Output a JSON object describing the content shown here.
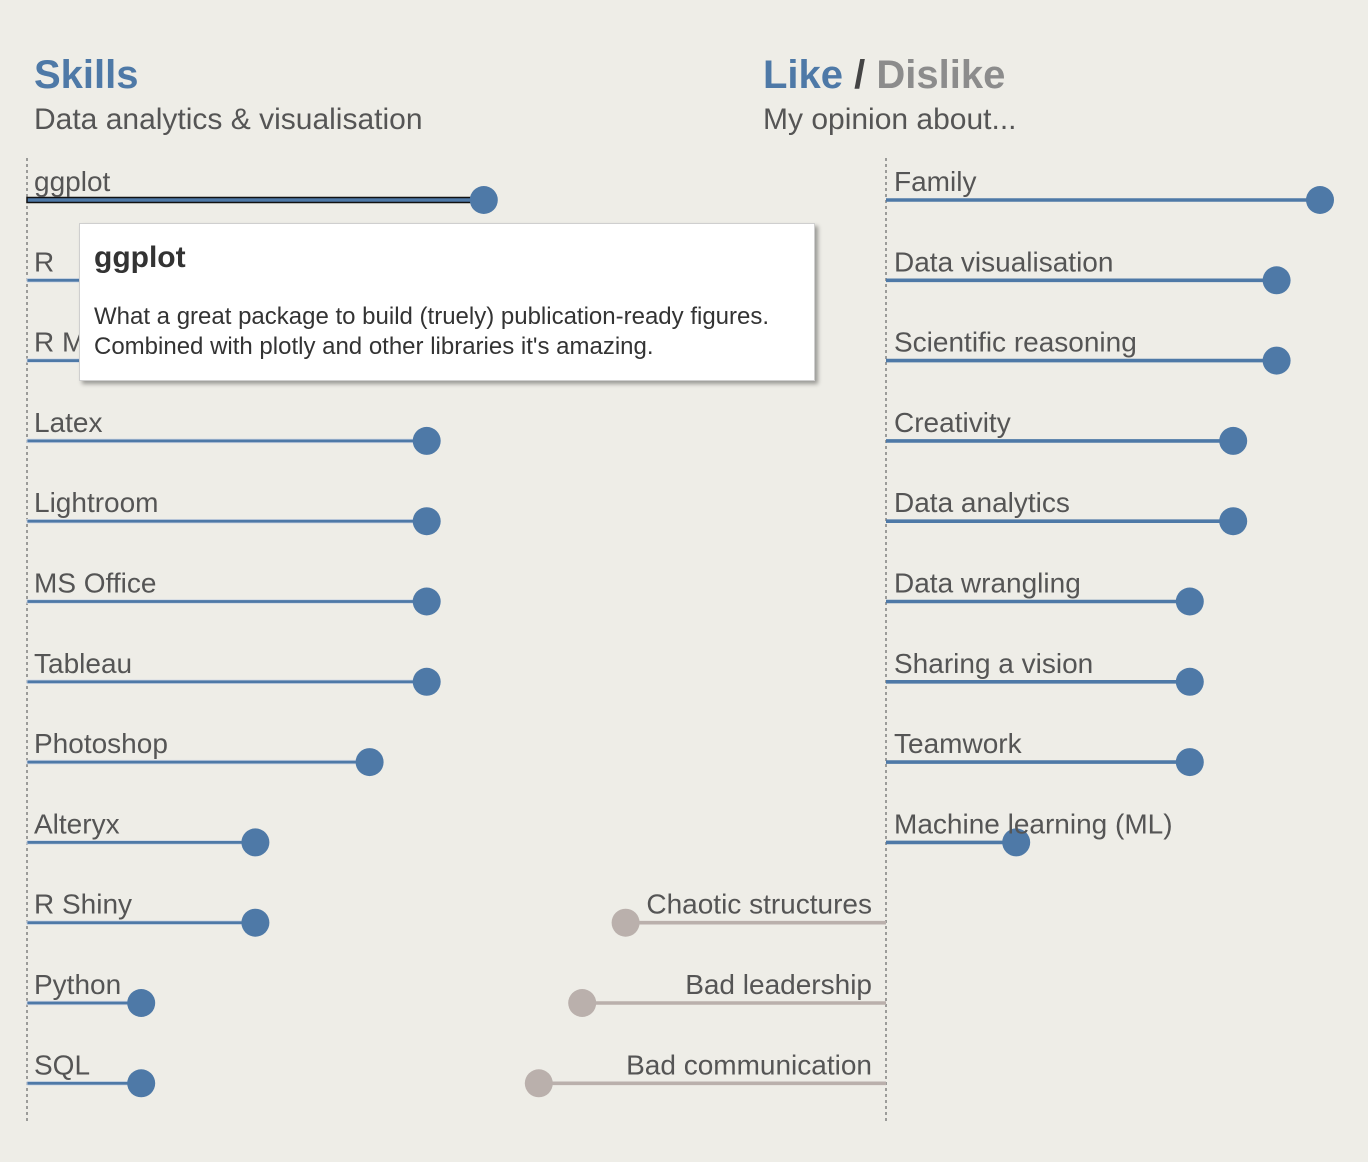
{
  "left_panel": {
    "title": "Skills",
    "subtitle": "Data analytics & visualisation"
  },
  "right_panel": {
    "title_like": "Like",
    "title_separator": "/",
    "title_dislike": "Dislike",
    "subtitle": "My opinion about..."
  },
  "tooltip": {
    "title": "ggplot",
    "text": "What a great package to build (truely) publication-ready figures. Combined with plotly and other libraries it's amazing."
  },
  "colors": {
    "like": "#4e79a7",
    "dislike": "#bab0ac",
    "background": "#eeede7",
    "text": "#555555"
  },
  "chart_data": [
    {
      "type": "lollipop",
      "orientation": "horizontal",
      "xlim": [
        0,
        10
      ],
      "highlighted": "ggplot",
      "categories": [
        "ggplot",
        "R",
        "R Markdown",
        "Latex",
        "Lightroom",
        "MS Office",
        "Tableau",
        "Photoshop",
        "Alteryx",
        "R Shiny",
        "Python",
        "SQL"
      ],
      "values": [
        8,
        7,
        7,
        7,
        7,
        7,
        7,
        6,
        4,
        4,
        2,
        2
      ]
    },
    {
      "type": "lollipop",
      "orientation": "horizontal",
      "xlim": [
        -8,
        10
      ],
      "categories": [
        "Family",
        "Data visualisation",
        "Scientific reasoning",
        "Creativity",
        "Data analytics",
        "Data wrangling",
        "Sharing a vision",
        "Teamwork",
        "Machine learning (ML)",
        "Chaotic structures",
        "Bad leadership",
        "Bad communication"
      ],
      "values": [
        10,
        9,
        9,
        8,
        8,
        7,
        7,
        7,
        3,
        -6,
        -7,
        -8
      ]
    }
  ]
}
